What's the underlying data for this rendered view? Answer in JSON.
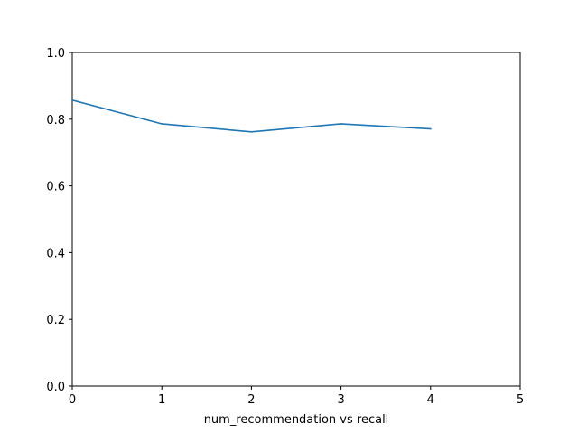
{
  "chart_data": {
    "type": "line",
    "title": "",
    "xlabel": "num_recommendation vs recall",
    "ylabel": "",
    "xlim": [
      0,
      5
    ],
    "ylim": [
      0,
      1.0
    ],
    "x_ticks": [
      "0",
      "1",
      "2",
      "3",
      "4",
      "5"
    ],
    "y_ticks": [
      "0.0",
      "0.2",
      "0.4",
      "0.6",
      "0.8",
      "1.0"
    ],
    "grid": false,
    "series": [
      {
        "x": [
          0,
          1,
          2,
          3,
          4
        ],
        "y": [
          0.857,
          0.786,
          0.762,
          0.786,
          0.771
        ],
        "color": "#1f77b4"
      }
    ]
  }
}
